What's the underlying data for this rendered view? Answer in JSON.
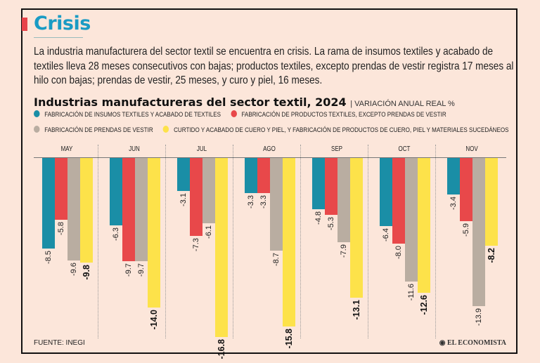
{
  "header": {
    "title": "Crisis",
    "paragraph": "La industria manufacturera del sector textil se encuentra en crisis. La rama de insumos textiles y acabado de textiles lleva 28 meses consecutivos con bajas; productos textiles, excepto prendas de vestir registra 17 meses al hilo con bajas; prendas de vestir, 25 meses, y curo y piel, 16 meses."
  },
  "chart_data": {
    "type": "bar",
    "title": "Industrias manufactureras del sector textil, 2024",
    "subtitle": "VARIACIÓN ANUAL REAL %",
    "categories": [
      "MAY",
      "JUN",
      "JUL",
      "AGO",
      "SEP",
      "OCT",
      "NOV"
    ],
    "series": [
      {
        "name": "FABRICACIÓN DE INSUMOS TEXTILES Y ACABADO DE TEXTILES",
        "color": "#1a8ea6",
        "values": [
          -8.5,
          -6.3,
          -3.1,
          -3.3,
          -4.8,
          -6.4,
          -3.4
        ]
      },
      {
        "name": "FABRICACIÓN DE PRODUCTOS TEXTILES, EXCEPTO PRENDAS DE VESTIR",
        "color": "#e8484a",
        "values": [
          -5.8,
          -9.7,
          -7.3,
          -3.3,
          -5.3,
          -8.0,
          -5.9
        ]
      },
      {
        "name": "FABRICACIÓN DE PRENDAS DE VESTIR",
        "color": "#b9ada1",
        "values": [
          -9.6,
          -9.7,
          -6.1,
          -8.7,
          -7.9,
          -11.6,
          -13.9
        ]
      },
      {
        "name": "CURTIDO Y ACABADO DE CUERO Y PIEL, Y FABRICACIÓN DE PRODUCTOS DE CUERO, PIEL Y MATERIALES SUCEDÁNEOS",
        "color": "#fde24a",
        "values": [
          -9.8,
          -14.0,
          -16.8,
          -15.8,
          -13.1,
          -12.6,
          -8.2
        ]
      }
    ],
    "ylim": [
      -17,
      0
    ],
    "legend": "top",
    "grid": false
  },
  "footer": {
    "source": "FUENTE: INEGI",
    "logo": "EL ECONOMISTA"
  }
}
